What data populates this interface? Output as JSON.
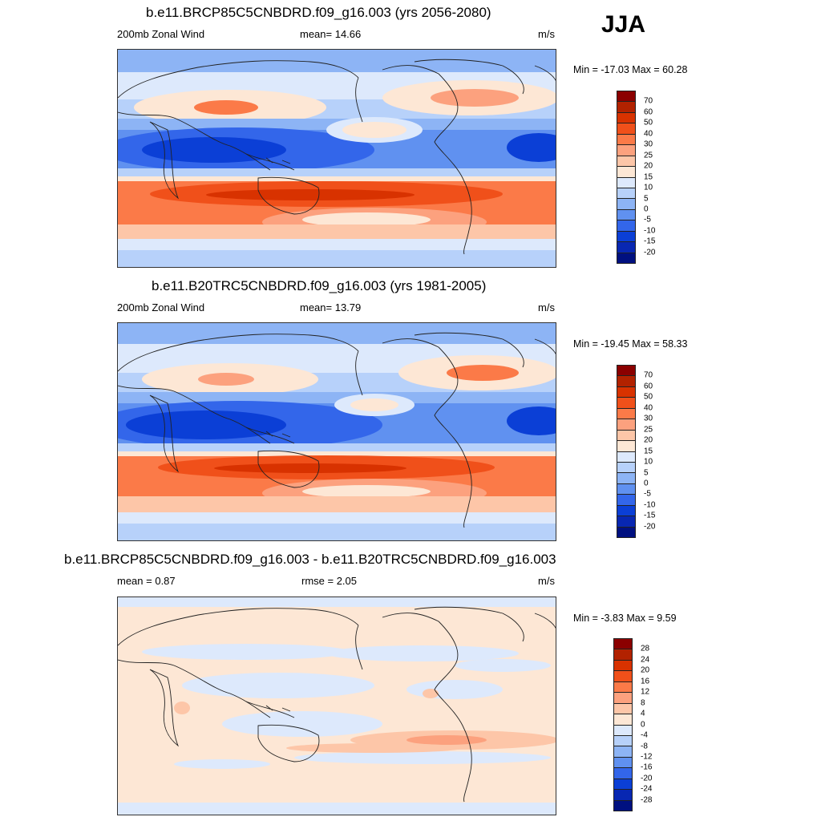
{
  "season": "JJA",
  "panels": [
    {
      "title": "b.e11.BRCP85C5CNBDRD.f09_g16.003 (yrs 2056-2080)",
      "left_label": "200mb Zonal Wind",
      "mid_label": "mean=  14.66",
      "right_label": "m/s",
      "minmax": "Min = -17.03 Max =  60.28"
    },
    {
      "title": "b.e11.B20TRC5CNBDRD.f09_g16.003 (yrs 1981-2005)",
      "left_label": "200mb Zonal Wind",
      "mid_label": "mean=  13.79",
      "right_label": "m/s",
      "minmax": "Min = -19.45 Max =  58.33"
    },
    {
      "title": "b.e11.BRCP85C5CNBDRD.f09_g16.003 - b.e11.B20TRC5CNBDRD.f09_g16.003",
      "left_label": "mean =   0.87",
      "mid_label": "rmse =   2.05",
      "right_label": "m/s",
      "minmax": "Min =  -3.83 Max =   9.59"
    }
  ],
  "colorbars": {
    "field": {
      "labels": [
        "70",
        "60",
        "50",
        "40",
        "30",
        "25",
        "20",
        "15",
        "10",
        "5",
        "0",
        "-5",
        "-10",
        "-15",
        "-20"
      ],
      "colors": [
        "#8b0000",
        "#b22200",
        "#d83200",
        "#f0501a",
        "#fb7a48",
        "#fca17e",
        "#fdc6a8",
        "#fde7d5",
        "#dde9fc",
        "#b7d1fa",
        "#8db4f5",
        "#6091f0",
        "#3366ea",
        "#0b3fd6",
        "#0827b2",
        "#001080"
      ]
    },
    "diff": {
      "labels": [
        "28",
        "24",
        "20",
        "16",
        "12",
        "8",
        "4",
        "0",
        "-4",
        "-8",
        "-12",
        "-16",
        "-20",
        "-24",
        "-28"
      ],
      "colors": [
        "#8b0000",
        "#b22200",
        "#d83200",
        "#f0501a",
        "#fb7a48",
        "#fca17e",
        "#fdc6a8",
        "#fde7d5",
        "#dde9fc",
        "#b7d1fa",
        "#8db4f5",
        "#6091f0",
        "#3366ea",
        "#0b3fd6",
        "#0827b2",
        "#001080"
      ]
    }
  }
}
